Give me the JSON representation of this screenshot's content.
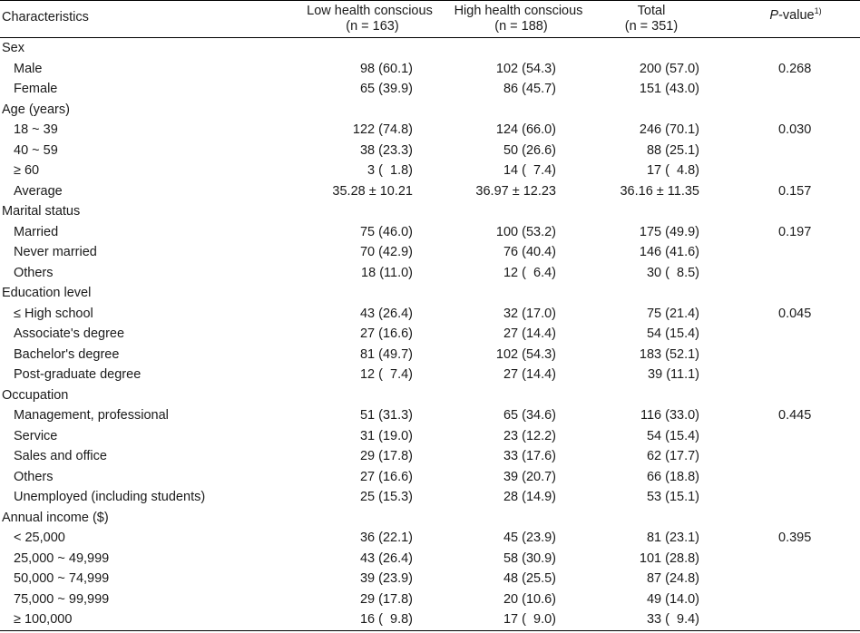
{
  "header": {
    "characteristics": "Characteristics",
    "low_title": "Low health conscious",
    "low_n": "(n = 163)",
    "high_title": "High health conscious",
    "high_n": "(n = 188)",
    "total_title": "Total",
    "total_n": "(n = 351)",
    "p_italic": "P",
    "p_rest": "-value",
    "p_footnote": "1)"
  },
  "rows": [
    {
      "type": "section",
      "label": "Sex",
      "low": "",
      "high": "",
      "total": "",
      "p": ""
    },
    {
      "type": "item",
      "label": "Male",
      "low": "98 (60.1)",
      "high": "102 (54.3)",
      "total": "200 (57.0)",
      "p": "0.268"
    },
    {
      "type": "item",
      "label": "Female",
      "low": "65 (39.9)",
      "high": "86 (45.7)",
      "total": "151 (43.0)",
      "p": ""
    },
    {
      "type": "section",
      "label": "Age (years)",
      "low": "",
      "high": "",
      "total": "",
      "p": ""
    },
    {
      "type": "item",
      "label": "18 ~ 39",
      "low": "122 (74.8)",
      "high": "124 (66.0)",
      "total": "246 (70.1)",
      "p": "0.030"
    },
    {
      "type": "item",
      "label": "40 ~ 59",
      "low": "38 (23.3)",
      "high": "50 (26.6)",
      "total": "88 (25.1)",
      "p": ""
    },
    {
      "type": "item",
      "label": "≥ 60",
      "low": "3 (  1.8)",
      "high": "14 (  7.4)",
      "total": "17 (  4.8)",
      "p": ""
    },
    {
      "type": "item",
      "label": "Average",
      "low": "35.28 ± 10.21",
      "high": "36.97 ± 12.23",
      "total": "36.16 ± 11.35",
      "p": "0.157"
    },
    {
      "type": "section",
      "label": "Marital status",
      "low": "",
      "high": "",
      "total": "",
      "p": ""
    },
    {
      "type": "item",
      "label": "Married",
      "low": "75 (46.0)",
      "high": "100 (53.2)",
      "total": "175 (49.9)",
      "p": "0.197"
    },
    {
      "type": "item",
      "label": "Never married",
      "low": "70 (42.9)",
      "high": "76 (40.4)",
      "total": "146 (41.6)",
      "p": ""
    },
    {
      "type": "item",
      "label": "Others",
      "low": "18 (11.0)",
      "high": "12 (  6.4)",
      "total": "30 (  8.5)",
      "p": ""
    },
    {
      "type": "section",
      "label": "Education level",
      "low": "",
      "high": "",
      "total": "",
      "p": ""
    },
    {
      "type": "item",
      "label": "≤ High school",
      "low": "43 (26.4)",
      "high": "32 (17.0)",
      "total": "75 (21.4)",
      "p": "0.045"
    },
    {
      "type": "item",
      "label": "Associate's degree",
      "low": "27 (16.6)",
      "high": "27 (14.4)",
      "total": "54 (15.4)",
      "p": ""
    },
    {
      "type": "item",
      "label": "Bachelor's degree",
      "low": "81 (49.7)",
      "high": "102 (54.3)",
      "total": "183 (52.1)",
      "p": ""
    },
    {
      "type": "item",
      "label": "Post-graduate degree",
      "low": "12 (  7.4)",
      "high": "27 (14.4)",
      "total": "39 (11.1)",
      "p": ""
    },
    {
      "type": "section",
      "label": "Occupation",
      "low": "",
      "high": "",
      "total": "",
      "p": ""
    },
    {
      "type": "item",
      "label": "Management, professional",
      "low": "51 (31.3)",
      "high": "65 (34.6)",
      "total": "116 (33.0)",
      "p": "0.445"
    },
    {
      "type": "item",
      "label": "Service",
      "low": "31 (19.0)",
      "high": "23 (12.2)",
      "total": "54 (15.4)",
      "p": ""
    },
    {
      "type": "item",
      "label": "Sales and office",
      "low": "29 (17.8)",
      "high": "33 (17.6)",
      "total": "62 (17.7)",
      "p": ""
    },
    {
      "type": "item",
      "label": "Others",
      "low": "27 (16.6)",
      "high": "39 (20.7)",
      "total": "66 (18.8)",
      "p": ""
    },
    {
      "type": "item",
      "label": "Unemployed (including students)",
      "low": "25 (15.3)",
      "high": "28 (14.9)",
      "total": "53 (15.1)",
      "p": ""
    },
    {
      "type": "section",
      "label": "Annual income ($)",
      "low": "",
      "high": "",
      "total": "",
      "p": ""
    },
    {
      "type": "item",
      "label": "< 25,000",
      "low": "36 (22.1)",
      "high": "45 (23.9)",
      "total": "81 (23.1)",
      "p": "0.395"
    },
    {
      "type": "item",
      "label": "25,000 ~ 49,999",
      "low": "43 (26.4)",
      "high": "58 (30.9)",
      "total": "101 (28.8)",
      "p": ""
    },
    {
      "type": "item",
      "label": "50,000 ~ 74,999",
      "low": "39 (23.9)",
      "high": "48 (25.5)",
      "total": "87 (24.8)",
      "p": ""
    },
    {
      "type": "item",
      "label": "75,000 ~ 99,999",
      "low": "29 (17.8)",
      "high": "20 (10.6)",
      "total": "49 (14.0)",
      "p": ""
    },
    {
      "type": "item",
      "label": "≥ 100,000",
      "low": "16 (  9.8)",
      "high": "17 (  9.0)",
      "total": "33 (  9.4)",
      "p": ""
    }
  ]
}
